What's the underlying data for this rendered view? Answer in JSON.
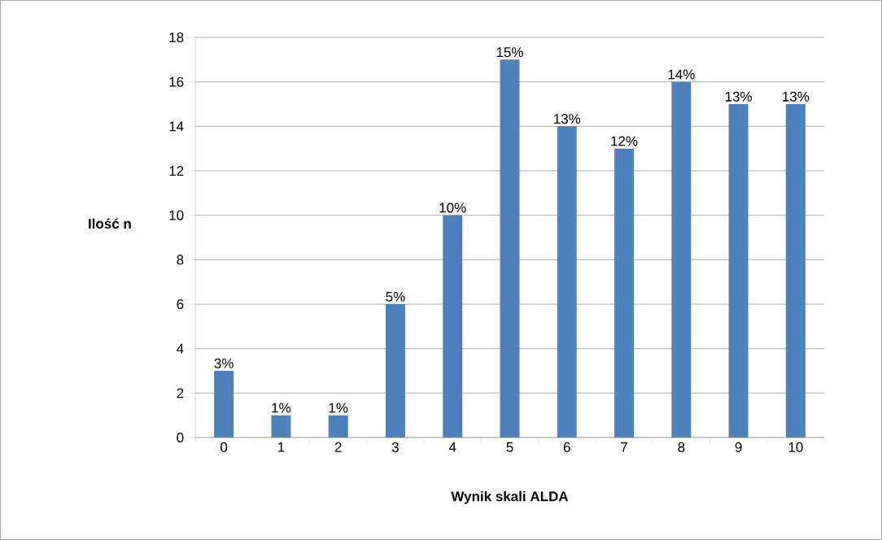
{
  "chart_data": {
    "type": "bar",
    "xlabel": "Wynik skali ALDA",
    "ylabel": "Ilość n",
    "categories": [
      "0",
      "1",
      "2",
      "3",
      "4",
      "5",
      "6",
      "7",
      "8",
      "9",
      "10"
    ],
    "values": [
      3,
      1,
      1,
      6,
      10,
      17,
      14,
      13,
      16,
      15,
      15
    ],
    "annotations": [
      {
        "text": "3%",
        "x": "0",
        "y": 3
      },
      {
        "text": "1%",
        "x": "1",
        "y": 1
      },
      {
        "text": "1%",
        "x": "2",
        "y": 1
      },
      {
        "text": "5%",
        "x": "3",
        "y": 6
      },
      {
        "text": "10%",
        "x": "4",
        "y": 10
      },
      {
        "text": "15%",
        "x": "5",
        "y": 17
      },
      {
        "text": "13%",
        "x": "6",
        "y": 14
      },
      {
        "text": "12%",
        "x": "7",
        "y": 13
      },
      {
        "text": "14%",
        "x": "8",
        "y": 16
      },
      {
        "text": "13%",
        "x": "9",
        "y": 15
      },
      {
        "text": "13%",
        "x": "10",
        "y": 15
      }
    ],
    "color": "#4f81bd",
    "ylim": [
      0,
      18
    ],
    "yticks": [
      0,
      2,
      4,
      6,
      8,
      10,
      12,
      14,
      16,
      18
    ],
    "grid": "y"
  }
}
